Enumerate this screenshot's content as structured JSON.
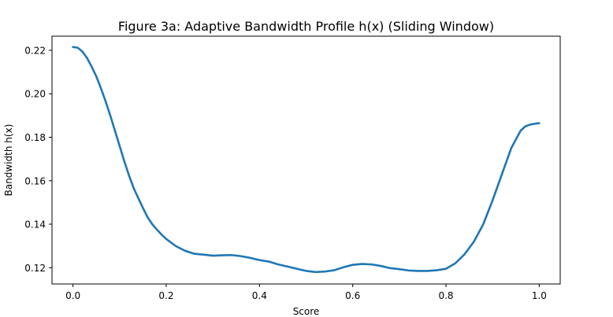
{
  "chart_data": {
    "type": "line",
    "title": "Figure 3a: Adaptive Bandwidth Profile h(x) (Sliding Window)",
    "xlabel": "Score",
    "ylabel": "Bandwidth h(x)",
    "xlim": [
      -0.045,
      1.045
    ],
    "ylim": [
      0.1125,
      0.2265
    ],
    "grid": false,
    "x_ticks": [
      0.0,
      0.2,
      0.4,
      0.6,
      0.8,
      1.0
    ],
    "x_tick_labels": [
      "0.0",
      "0.2",
      "0.4",
      "0.6",
      "0.8",
      "1.0"
    ],
    "y_ticks": [
      0.12,
      0.14,
      0.16,
      0.18,
      0.2,
      0.22
    ],
    "y_tick_labels": [
      "0.12",
      "0.14",
      "0.16",
      "0.18",
      "0.20",
      "0.22"
    ],
    "series": [
      {
        "color": "#1f77b4",
        "x": [
          0.0,
          0.01,
          0.02,
          0.03,
          0.04,
          0.05,
          0.06,
          0.07,
          0.08,
          0.09,
          0.1,
          0.11,
          0.12,
          0.13,
          0.14,
          0.15,
          0.16,
          0.17,
          0.18,
          0.19,
          0.2,
          0.22,
          0.24,
          0.26,
          0.28,
          0.3,
          0.32,
          0.34,
          0.36,
          0.38,
          0.4,
          0.42,
          0.44,
          0.46,
          0.48,
          0.5,
          0.52,
          0.54,
          0.56,
          0.58,
          0.6,
          0.62,
          0.64,
          0.66,
          0.68,
          0.7,
          0.72,
          0.74,
          0.76,
          0.78,
          0.8,
          0.82,
          0.84,
          0.86,
          0.88,
          0.9,
          0.92,
          0.94,
          0.96,
          0.97,
          0.98,
          0.99,
          1.0
        ],
        "y": [
          0.2215,
          0.2212,
          0.2195,
          0.2165,
          0.2125,
          0.208,
          0.2025,
          0.1965,
          0.19,
          0.183,
          0.176,
          0.169,
          0.1625,
          0.1567,
          0.152,
          0.1475,
          0.1432,
          0.14,
          0.1375,
          0.1352,
          0.1332,
          0.13,
          0.1278,
          0.1264,
          0.126,
          0.1255,
          0.1257,
          0.1258,
          0.1253,
          0.1245,
          0.1235,
          0.1228,
          0.1215,
          0.1205,
          0.1195,
          0.1185,
          0.118,
          0.1182,
          0.1188,
          0.1202,
          0.1213,
          0.1217,
          0.1215,
          0.1208,
          0.1198,
          0.1193,
          0.1187,
          0.1185,
          0.1185,
          0.1188,
          0.1195,
          0.122,
          0.1262,
          0.132,
          0.14,
          0.151,
          0.163,
          0.175,
          0.183,
          0.185,
          0.1858,
          0.1862,
          0.1865
        ]
      }
    ]
  }
}
